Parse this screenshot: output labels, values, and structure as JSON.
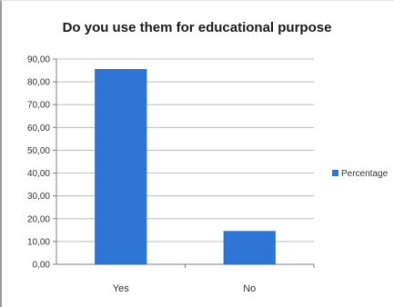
{
  "chart_data": {
    "type": "bar",
    "title": "Do you use them for educational purpose",
    "categories": [
      "Yes",
      "No"
    ],
    "series": [
      {
        "name": "Percentage",
        "values": [
          85.5,
          14.5
        ]
      }
    ],
    "ylim": [
      0,
      90
    ],
    "yticks": [
      "0,00",
      "10,00",
      "20,00",
      "30,00",
      "40,00",
      "50,00",
      "60,00",
      "70,00",
      "80,00",
      "90,00"
    ],
    "grid": true,
    "legend": "right",
    "colors": {
      "bar": "#2f75d6",
      "grid": "#bdbdbd",
      "axis": "#7f7f7f"
    }
  }
}
